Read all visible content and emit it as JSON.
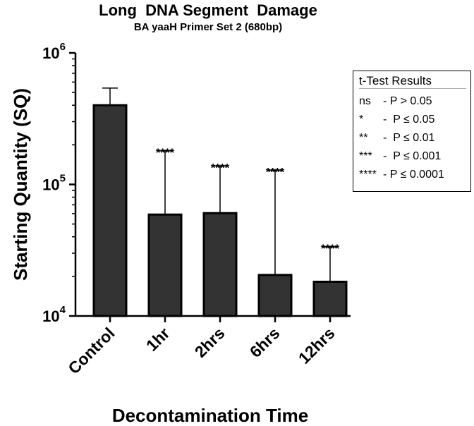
{
  "chart_data": {
    "type": "bar",
    "title": "Long  DNA Segment  Damage",
    "subtitle": "BA yaaH Primer Set 2 (680bp)",
    "xlabel": "Decontamination Time",
    "ylabel": "Starting Quantity (SQ)",
    "yscale": "log",
    "ylim": [
      10000,
      1000000
    ],
    "yticks": [
      {
        "value": 10000,
        "base": "10",
        "exp": "4"
      },
      {
        "value": 100000,
        "base": "10",
        "exp": "5"
      },
      {
        "value": 1000000,
        "base": "10",
        "exp": "6"
      }
    ],
    "categories": [
      "Control",
      "1hr",
      "2hrs",
      "6hrs",
      "12hrs"
    ],
    "values": [
      400000,
      59000,
      60500,
      20500,
      18200
    ],
    "error_upper": [
      540000,
      180000,
      138000,
      128000,
      33500
    ],
    "significance": [
      "",
      "****",
      "****",
      "****",
      "****"
    ],
    "bar_color": "#333333",
    "legend_placement": "right"
  },
  "legend": {
    "title": "t-Test Results",
    "rows": [
      {
        "symbol": "ns",
        "text": "- P > 0.05"
      },
      {
        "symbol": "*",
        "text": "-  P ≤ 0.05"
      },
      {
        "symbol": "**",
        "text": "-  P ≤ 0.01"
      },
      {
        "symbol": "***",
        "text": "-  P ≤ 0.001"
      },
      {
        "symbol": "****",
        "text": "- P ≤ 0.0001"
      }
    ]
  }
}
